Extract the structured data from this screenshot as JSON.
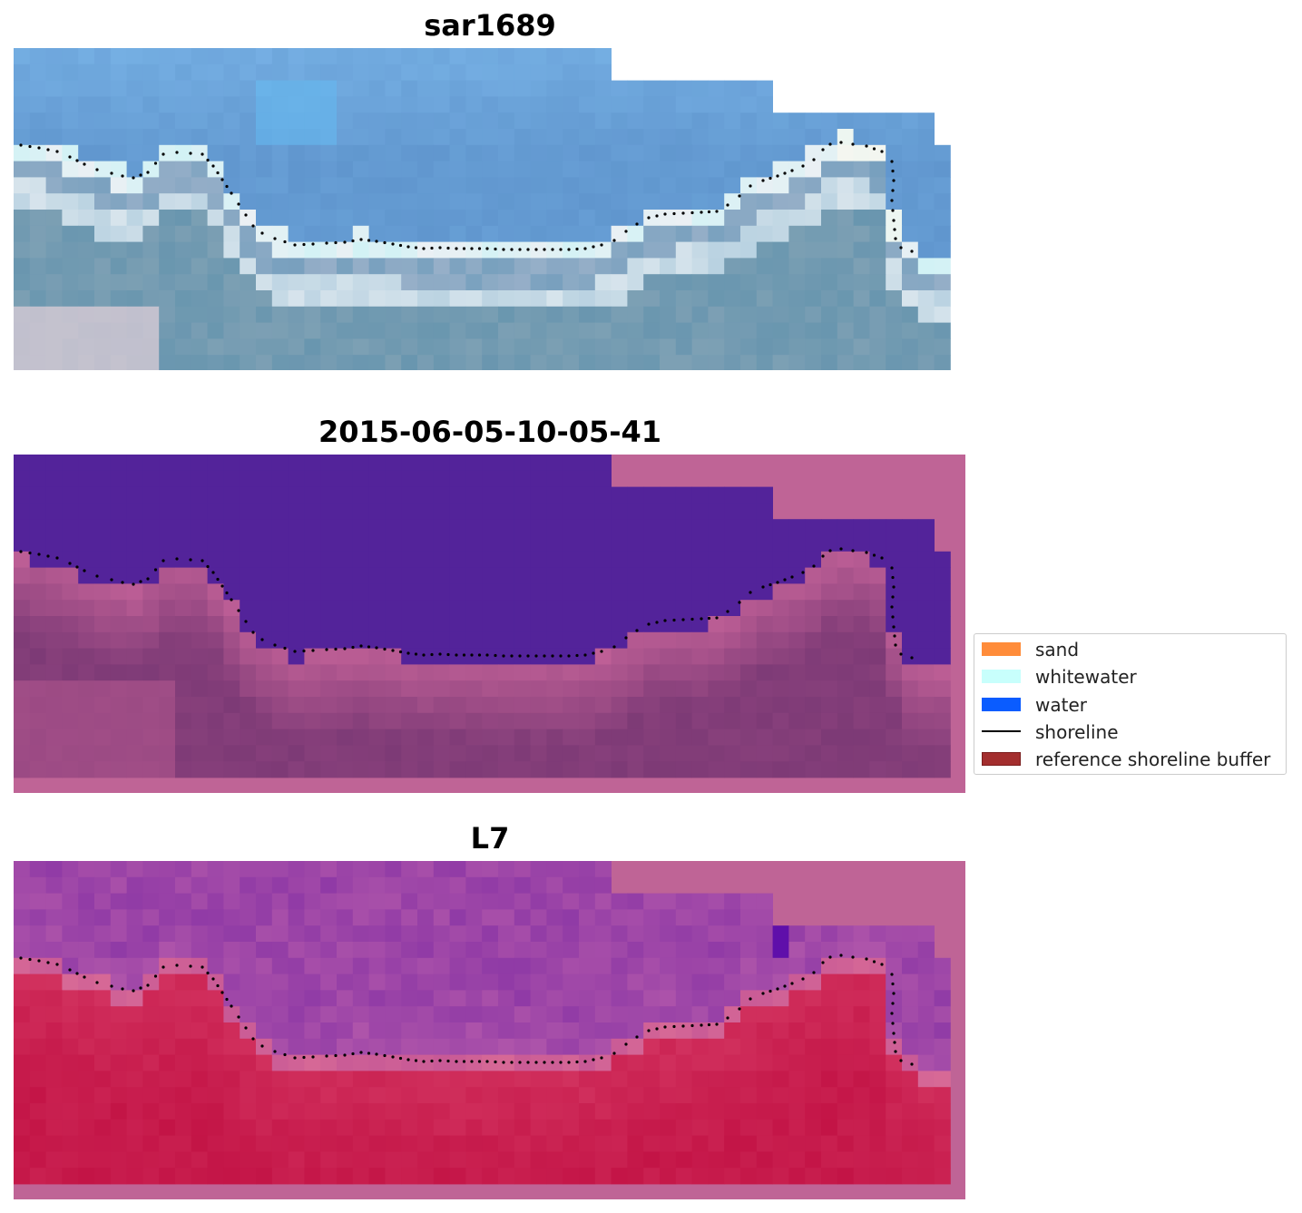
{
  "panels": [
    {
      "title": "sar1689",
      "kind": "rgb"
    },
    {
      "title": "2015-06-05-10-05-41",
      "kind": "classified"
    },
    {
      "title": "L7",
      "kind": "mndwi"
    }
  ],
  "legend": {
    "items": [
      {
        "label": "sand",
        "type": "patch",
        "color": "#ff8c3a"
      },
      {
        "label": "whitewater",
        "type": "patch",
        "color": "#c8fffc"
      },
      {
        "label": "water",
        "type": "patch",
        "color": "#0a5cff"
      },
      {
        "label": "shoreline",
        "type": "line",
        "color": "#000000"
      },
      {
        "label": "reference shoreline buffer",
        "type": "patch",
        "color": "#a32e2e"
      }
    ]
  },
  "colors": {
    "classified_water": "#53239a",
    "classified_background": "#bf6496",
    "mndwi_background": "#bf6496",
    "shoreline": "#000000"
  }
}
